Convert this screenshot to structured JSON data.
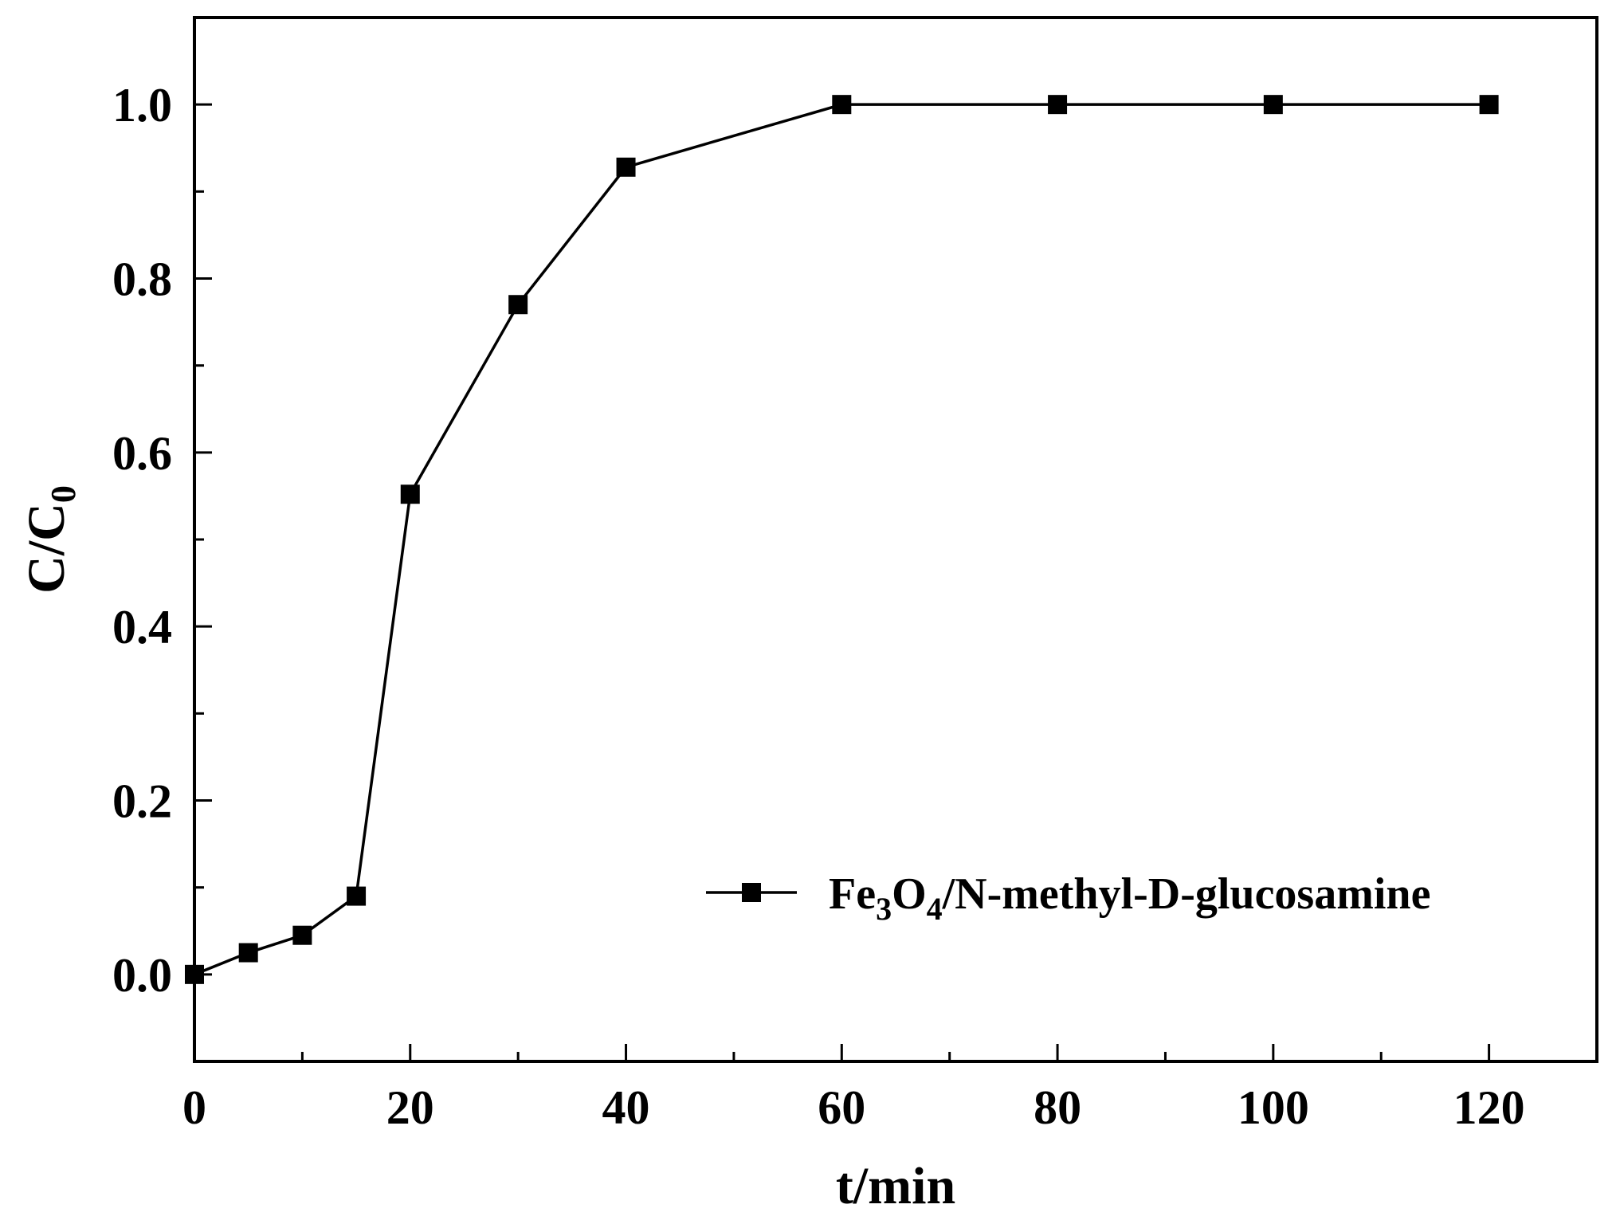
{
  "chart_data": {
    "type": "line",
    "xlabel": "t/min",
    "ylabel": {
      "main": "C/C",
      "sub": "0"
    },
    "xlim": [
      0,
      130
    ],
    "ylim": [
      -0.1,
      1.1
    ],
    "x_ticks": [
      0,
      20,
      40,
      60,
      80,
      100,
      120
    ],
    "x_tick_labels": [
      "0",
      "20",
      "40",
      "60",
      "80",
      "100",
      "120"
    ],
    "x_minor_step": 10,
    "y_ticks": [
      0.0,
      0.2,
      0.4,
      0.6,
      0.8,
      1.0
    ],
    "y_tick_labels": [
      "0.0",
      "0.2",
      "0.4",
      "0.6",
      "0.8",
      "1.0"
    ],
    "y_minor_step": 0.1,
    "grid": false,
    "legend_position": "bottom-right",
    "series": [
      {
        "name_parts": [
          {
            "text": "Fe",
            "sub": false
          },
          {
            "text": "3",
            "sub": true
          },
          {
            "text": "O",
            "sub": false
          },
          {
            "text": "4",
            "sub": true
          },
          {
            "text": "/N-methyl-D-glucosamine",
            "sub": false
          }
        ],
        "marker": "square",
        "color": "#000000",
        "x": [
          0,
          5,
          10,
          15,
          20,
          30,
          40,
          60,
          80,
          100,
          120
        ],
        "y": [
          0.0,
          0.025,
          0.045,
          0.09,
          0.552,
          0.77,
          0.928,
          1.0,
          1.0,
          1.0,
          1.0
        ]
      }
    ]
  }
}
